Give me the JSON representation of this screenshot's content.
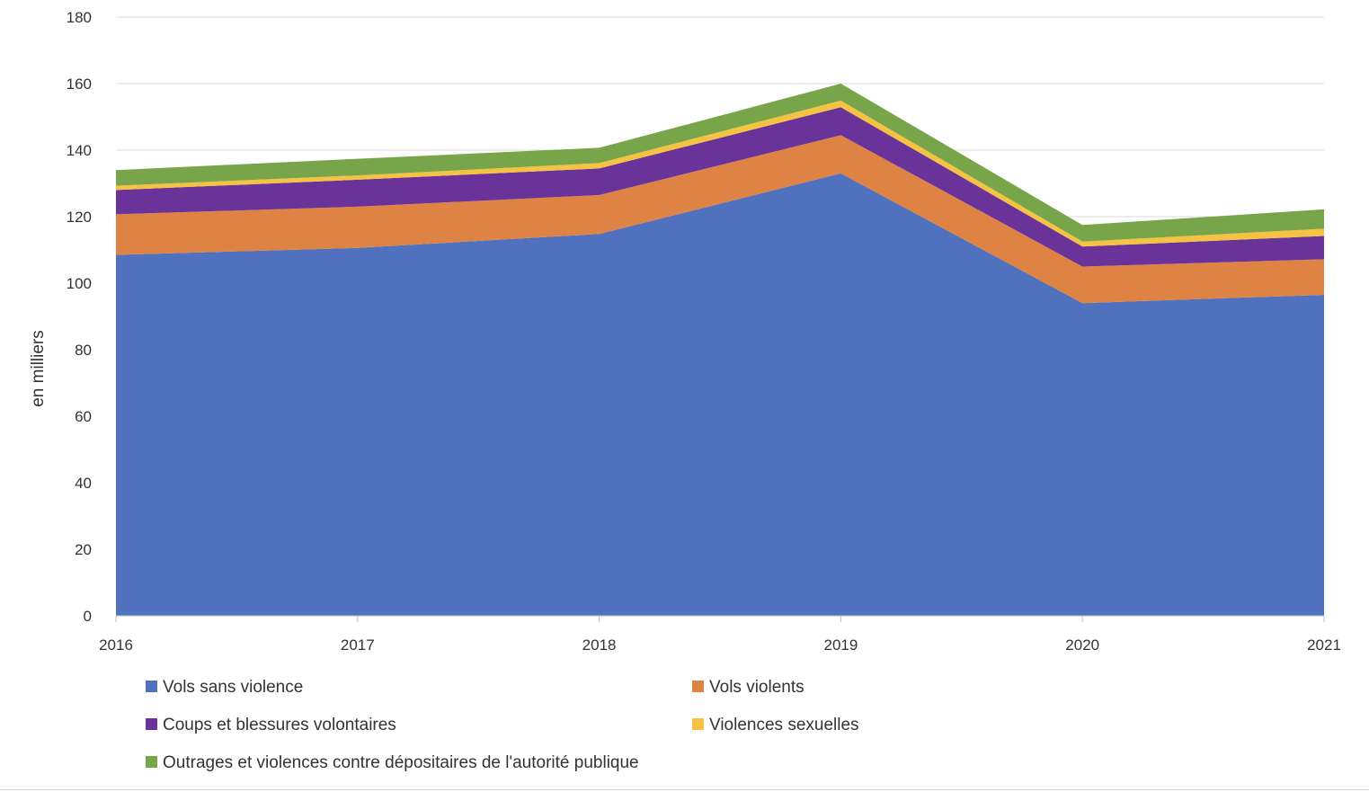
{
  "chart_data": {
    "type": "area",
    "stacked": true,
    "x": [
      "2016",
      "2017",
      "2018",
      "2019",
      "2020",
      "2021"
    ],
    "ylabel": "en milliers",
    "ylim": [
      0,
      180
    ],
    "yticks": [
      "0",
      "20",
      "40",
      "60",
      "80",
      "100",
      "120",
      "140",
      "160",
      "180"
    ],
    "grid": true,
    "legend_position": "bottom",
    "series": [
      {
        "name": "Vols sans violence",
        "color": "#4f71be",
        "values": [
          108.5,
          110.6,
          114.8,
          133.0,
          94.0,
          96.5
        ]
      },
      {
        "name": "Vols violents",
        "color": "#de8344",
        "values": [
          12.2,
          12.4,
          11.7,
          11.5,
          11.0,
          10.7
        ]
      },
      {
        "name": "Coups et blessures volontaires",
        "color": "#6a339a",
        "values": [
          7.3,
          8.1,
          8.0,
          8.4,
          6.0,
          7.0
        ]
      },
      {
        "name": "Violences sexuelles",
        "color": "#f5c242",
        "values": [
          1.3,
          1.3,
          1.6,
          2.0,
          1.5,
          2.2
        ]
      },
      {
        "name": "Outrages et violences contre dépositaires de l'autorité publique",
        "color": "#78a54a",
        "values": [
          4.7,
          5.0,
          4.6,
          5.1,
          5.0,
          5.8
        ]
      }
    ]
  }
}
